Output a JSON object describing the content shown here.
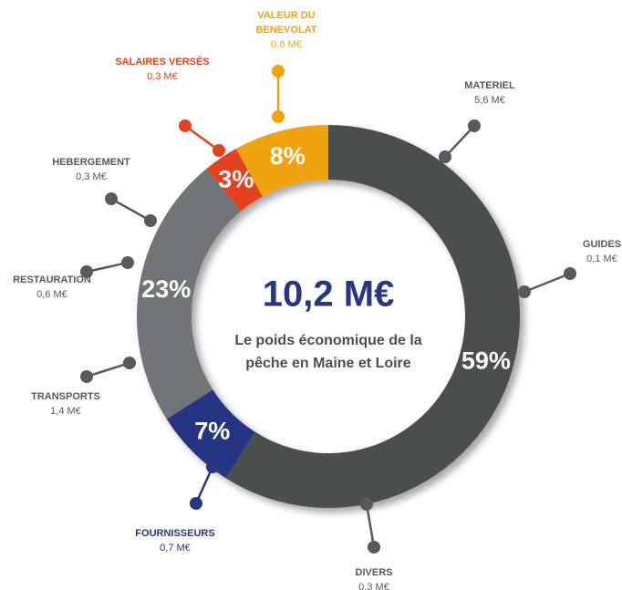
{
  "chart_data": {
    "type": "pie",
    "center_value": "10,2 M€",
    "center_text": [
      "Le poids économique de la",
      "pêche en Maine et Loire"
    ],
    "values": [
      59,
      7,
      23,
      3,
      8
    ],
    "value_labels": [
      "59%",
      "7%",
      "23%",
      "3%",
      "8%"
    ],
    "colors": [
      "#4a4f4e",
      "#283583",
      "#707477",
      "#e2431f",
      "#f0a30a"
    ],
    "callouts": [
      {
        "lines": [
          "MATERIEL"
        ],
        "amount": "5,6 M€",
        "color": "#555a5c"
      },
      {
        "lines": [
          "GUIDES"
        ],
        "amount": "0,1 M€",
        "color": "#555a5c"
      },
      {
        "lines": [
          "DIVERS"
        ],
        "amount": "0,3 M€",
        "color": "#555a5c"
      },
      {
        "lines": [
          "FOURNISSEURS"
        ],
        "amount": "0,7 M€",
        "color": "#283583"
      },
      {
        "lines": [
          "TRANSPORTS"
        ],
        "amount": "1,4 M€",
        "color": "#555a5c"
      },
      {
        "lines": [
          "RESTAURATION"
        ],
        "amount": "0,6 M€",
        "color": "#555a5c"
      },
      {
        "lines": [
          "HEBERGEMENT"
        ],
        "amount": "0,3 M€",
        "color": "#555a5c"
      },
      {
        "lines": [
          "SALAIRES VERSÉS"
        ],
        "amount": "0,3 M€",
        "color": "#e2431f"
      },
      {
        "lines": [
          "VALEUR DU",
          "BENEVOLAT"
        ],
        "amount": "0,8 M€",
        "color": "#f0a30a"
      }
    ]
  }
}
